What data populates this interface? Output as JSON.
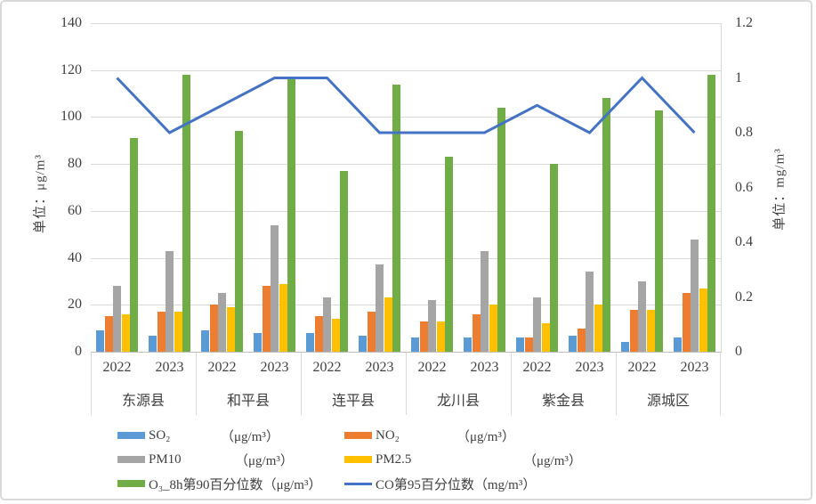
{
  "chart_data": {
    "type": "bar",
    "title": "",
    "regions": [
      "东源县",
      "和平县",
      "连平县",
      "龙川县",
      "紫金县",
      "源城区"
    ],
    "years": [
      "2022",
      "2023"
    ],
    "categories": [
      "东源县-2022",
      "东源县-2023",
      "和平县-2022",
      "和平县-2023",
      "连平县-2022",
      "连平县-2023",
      "龙川县-2022",
      "龙川县-2023",
      "紫金县-2022",
      "紫金县-2023",
      "源城区-2022",
      "源城区-2023"
    ],
    "series": [
      {
        "key": "so2",
        "name": "SO₂",
        "unit": "（μg/m³）",
        "type": "bar",
        "color": "#5b9bd5",
        "values": [
          9,
          7,
          9,
          8,
          8,
          7,
          6,
          6,
          6,
          7,
          4,
          6
        ]
      },
      {
        "key": "no2",
        "name": "NO₂",
        "unit": "（μg/m³）",
        "type": "bar",
        "color": "#ed7d31",
        "values": [
          15,
          17,
          20,
          28,
          15,
          17,
          13,
          16,
          6,
          10,
          18,
          25
        ]
      },
      {
        "key": "pm10",
        "name": "PM10",
        "unit": "（μg/m³）",
        "type": "bar",
        "color": "#a5a5a5",
        "values": [
          28,
          43,
          25,
          54,
          23,
          37,
          22,
          43,
          23,
          34,
          30,
          48
        ]
      },
      {
        "key": "pm25",
        "name": "PM2.5",
        "unit": "（μg/m³）",
        "type": "bar",
        "color": "#ffc000",
        "values": [
          16,
          17,
          19,
          29,
          14,
          23,
          13,
          20,
          12,
          20,
          18,
          27
        ]
      },
      {
        "key": "o3-8h-p90",
        "name": "O₃_8h第90百分位数",
        "unit": "（μg/m³）",
        "type": "bar",
        "color": "#70ad47",
        "values": [
          91,
          118,
          94,
          117,
          77,
          114,
          83,
          104,
          80,
          108,
          103,
          118
        ]
      },
      {
        "key": "co-p95",
        "name": "CO第95百分位数",
        "unit": "（mg/m³）",
        "type": "line",
        "color": "#4472c4",
        "values": [
          1,
          0.8,
          0.9,
          1,
          1,
          0.8,
          0.8,
          0.8,
          0.9,
          0.8,
          1,
          0.8
        ]
      }
    ],
    "left_axis": {
      "title": "单位：μg/m³",
      "min": 0,
      "max": 140,
      "step": 20,
      "ticks": [
        "0",
        "20",
        "40",
        "60",
        "80",
        "100",
        "120",
        "140"
      ]
    },
    "right_axis": {
      "title": "单位：mg/m³",
      "min": 0,
      "max": 1.2,
      "step": 0.2,
      "ticks": [
        "0",
        "0.2",
        "0.4",
        "0.6",
        "0.8",
        "1",
        "1.2"
      ]
    },
    "legend_position": "bottom",
    "grid": true
  }
}
